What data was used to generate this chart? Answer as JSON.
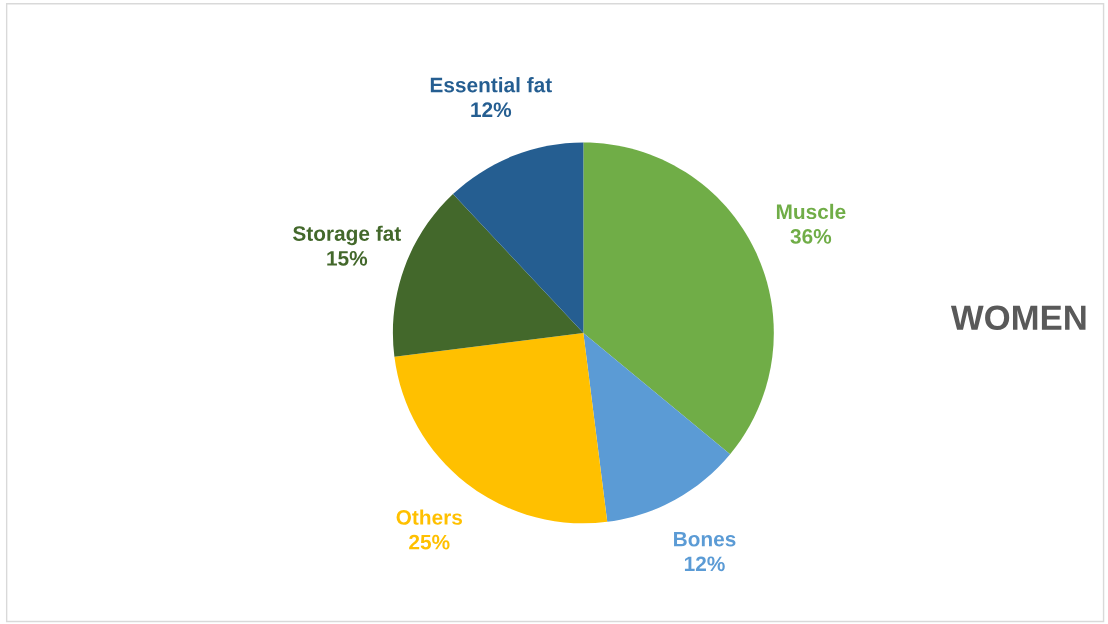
{
  "chart_data": {
    "type": "pie",
    "title": "WOMEN",
    "categories": [
      "Muscle",
      "Bones",
      "Others",
      "Storage fat",
      "Essential fat"
    ],
    "values": [
      36,
      12,
      25,
      15,
      12
    ],
    "value_labels": [
      "36%",
      "12%",
      "25%",
      "15%",
      "12%"
    ],
    "colors": [
      "#70ad47",
      "#5b9bd5",
      "#ffc000",
      "#43682b",
      "#255e91"
    ],
    "legend": false
  }
}
